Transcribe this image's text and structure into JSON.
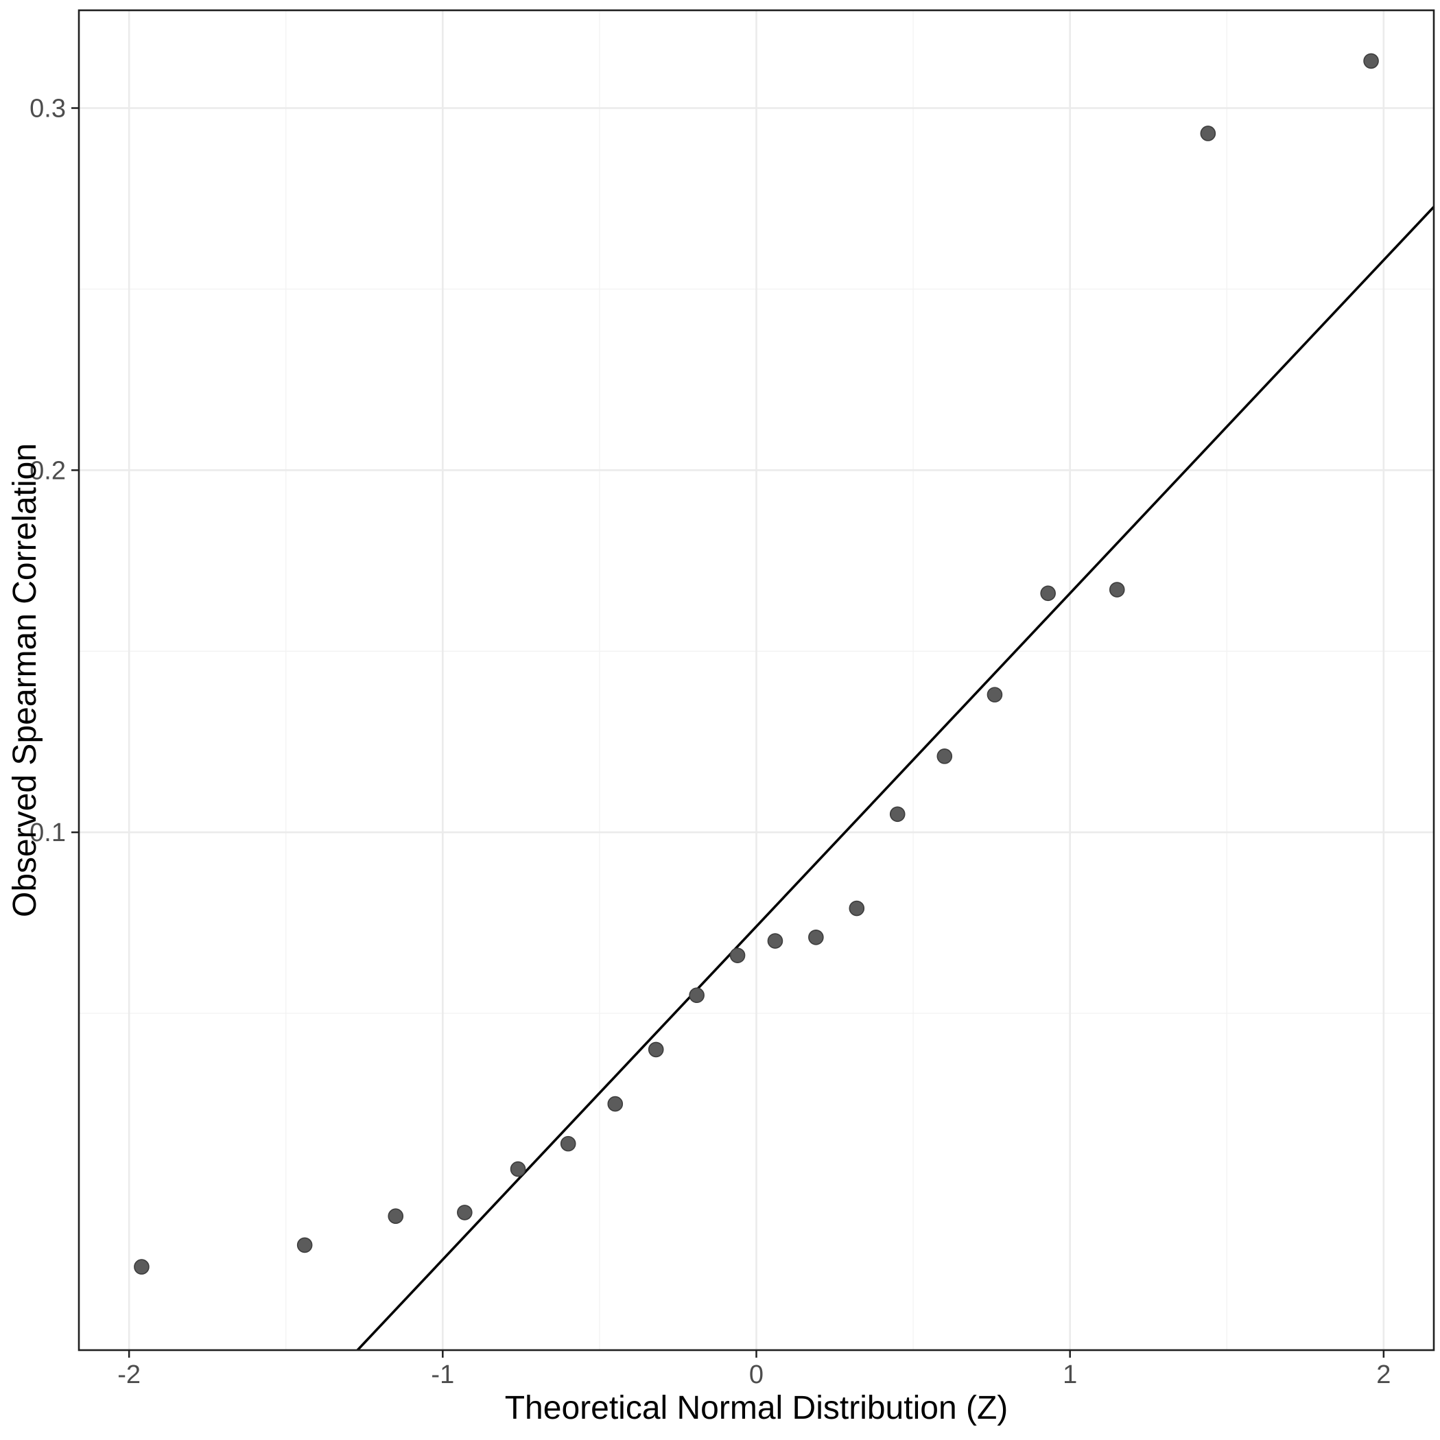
{
  "figure": {
    "background": "#ffffff"
  },
  "chart_data": {
    "type": "scatter",
    "title": "",
    "xlabel": "Theoretical Normal Distribution (Z)",
    "ylabel": "Observed Spearman Correlation",
    "x_ticks": [
      -2,
      -1,
      0,
      1,
      2
    ],
    "x_tick_labels": [
      "-2",
      "-1",
      "0",
      "1",
      "2"
    ],
    "x_minor_ticks": [
      -1.5,
      -0.5,
      0.5,
      1.5
    ],
    "y_ticks": [
      0.1,
      0.2,
      0.3
    ],
    "y_tick_labels": [
      "0.1",
      "0.2",
      "0.3"
    ],
    "y_minor_ticks": [
      0.05,
      0.15,
      0.25
    ],
    "xlim": [
      -2.16,
      2.16
    ],
    "ylim": [
      -0.043,
      0.327
    ],
    "grid": "major+minor",
    "legend": "none",
    "points": [
      {
        "z": -1.96,
        "obs": -0.02
      },
      {
        "z": -1.44,
        "obs": -0.014
      },
      {
        "z": -1.15,
        "obs": -0.006
      },
      {
        "z": -0.93,
        "obs": -0.005
      },
      {
        "z": -0.76,
        "obs": 0.007
      },
      {
        "z": -0.6,
        "obs": 0.014
      },
      {
        "z": -0.45,
        "obs": 0.025
      },
      {
        "z": -0.32,
        "obs": 0.04
      },
      {
        "z": -0.19,
        "obs": 0.055
      },
      {
        "z": -0.06,
        "obs": 0.066
      },
      {
        "z": 0.06,
        "obs": 0.07
      },
      {
        "z": 0.19,
        "obs": 0.071
      },
      {
        "z": 0.32,
        "obs": 0.079
      },
      {
        "z": 0.45,
        "obs": 0.105
      },
      {
        "z": 0.6,
        "obs": 0.121
      },
      {
        "z": 0.76,
        "obs": 0.138
      },
      {
        "z": 0.93,
        "obs": 0.166
      },
      {
        "z": 1.15,
        "obs": 0.167
      },
      {
        "z": 1.44,
        "obs": 0.293
      },
      {
        "z": 1.96,
        "obs": 0.313
      }
    ],
    "ref_line": {
      "slope": 0.092,
      "intercept": 0.074
    },
    "colors": {
      "point_fill": "#5b5b5b",
      "point_stroke": "#3d3d3d",
      "ref_line": "#000000",
      "grid_major": "#ebebeb",
      "grid_minor": "#f3f3f3",
      "panel_border": "#202020",
      "tick_mark": "#202020",
      "tick_label": "#4d4d4d",
      "axis_title": "#000000",
      "background": "#ffffff"
    }
  }
}
